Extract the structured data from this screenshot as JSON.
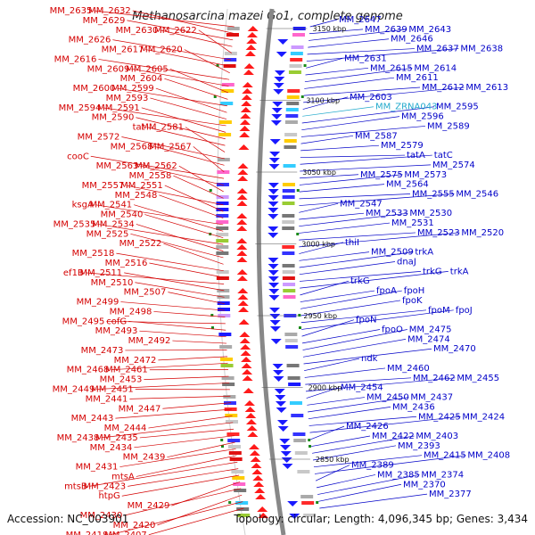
{
  "title": "Methanosarcina mazei Go1, complete genome",
  "footer": {
    "accession": "Accession: NC_003901",
    "summary": "Topology: circular; Length: 4,096,345 bp; Genes: 3,434"
  },
  "colors": {
    "left_labels": "#d40000",
    "right_labels": "#0000c8",
    "rna_label": "#22aacc",
    "backbone": "#888888",
    "tick_marker": "#1a8a1a"
  },
  "kbp_markers": [
    "3150 kbp",
    "3100 kbp",
    "3050 kbp",
    "3000 kbp",
    "2950 kbp",
    "2900 kbp",
    "2850 kbp"
  ],
  "left_labels": [
    "MM_2635",
    "MM_2632",
    "MM_2629",
    "MM_2630",
    "MM_2622",
    "MM_2626",
    "MM_2617",
    "MM_2620",
    "MM_2616",
    "MM_2609",
    "MM_2605",
    "MM_2604",
    "MM_2600",
    "MM_2599",
    "MM_2593",
    "MM_2594",
    "MM_2591",
    "MM_2590",
    "tat",
    "MM_2581",
    "MM_2572",
    "MM_2568",
    "MM_2567",
    "cooC",
    "MM_2563",
    "MM_2562",
    "MM_2558",
    "MM_2557",
    "MM_2551",
    "MM_2548",
    "ksgA",
    "MM_2541",
    "MM_2540",
    "MM_2535",
    "MM_2534",
    "MM_2525",
    "MM_2522",
    "MM_2518",
    "MM_2516",
    "ef1B",
    "MM_2511",
    "MM_2510",
    "MM_2507",
    "MM_2499",
    "MM_2498",
    "MM_2495",
    "cofG",
    "MM_2493",
    "MM_2492",
    "MM_2473",
    "MM_2472",
    "MM_2468",
    "MM_2461",
    "MM_2453",
    "MM_2449",
    "MM_2451",
    "MM_2441",
    "MM_2447",
    "MM_2443",
    "MM_2444",
    "MM_2438",
    "MM_2435",
    "MM_2434",
    "MM_2439",
    "MM_2431",
    "mtsA",
    "mtsB",
    "MM_2423",
    "htpG",
    "MM_2429",
    "MM_2430",
    "MM_2420",
    "MM_2418",
    "MM_2407"
  ],
  "right_labels": [
    "MM_2647",
    "MM_2639",
    "MM_2643",
    "MM_2646",
    "MM_2637",
    "MM_2638",
    "MM_2631",
    "MM_2615",
    "MM_2614",
    "MM_2611",
    "MM_2612",
    "MM_2613",
    "MM_2603",
    "MM_ZRNA043",
    "MM_2595",
    "MM_2596",
    "MM_2589",
    "MM_2587",
    "MM_2579",
    "tatA",
    "tatC",
    "MM_2574",
    "MM_2575",
    "MM_2573",
    "MM_2564",
    "MM_2555",
    "MM_2546",
    "MM_2547",
    "MM_2533",
    "MM_2530",
    "MM_2531",
    "MM_2523",
    "MM_2520",
    "thiI",
    "MM_2509",
    "trkA",
    "dnaJ",
    "trkG",
    "trkA",
    "trkG",
    "fpoA",
    "fpoH",
    "fpoK",
    "fpoM",
    "fpoJ",
    "fpoN",
    "fpoO",
    "MM_2475",
    "MM_2474",
    "MM_2470",
    "ndk",
    "MM_2460",
    "MM_2462",
    "MM_2455",
    "MM_2454",
    "MM_2450",
    "MM_2437",
    "MM_2436",
    "MM_2425",
    "MM_2424",
    "MM_2426",
    "MM_2422",
    "MM_2403",
    "MM_2393",
    "MM_2415",
    "MM_2408",
    "MM_2389",
    "MM_2385",
    "MM_2374",
    "MM_2370",
    "MM_2377"
  ]
}
